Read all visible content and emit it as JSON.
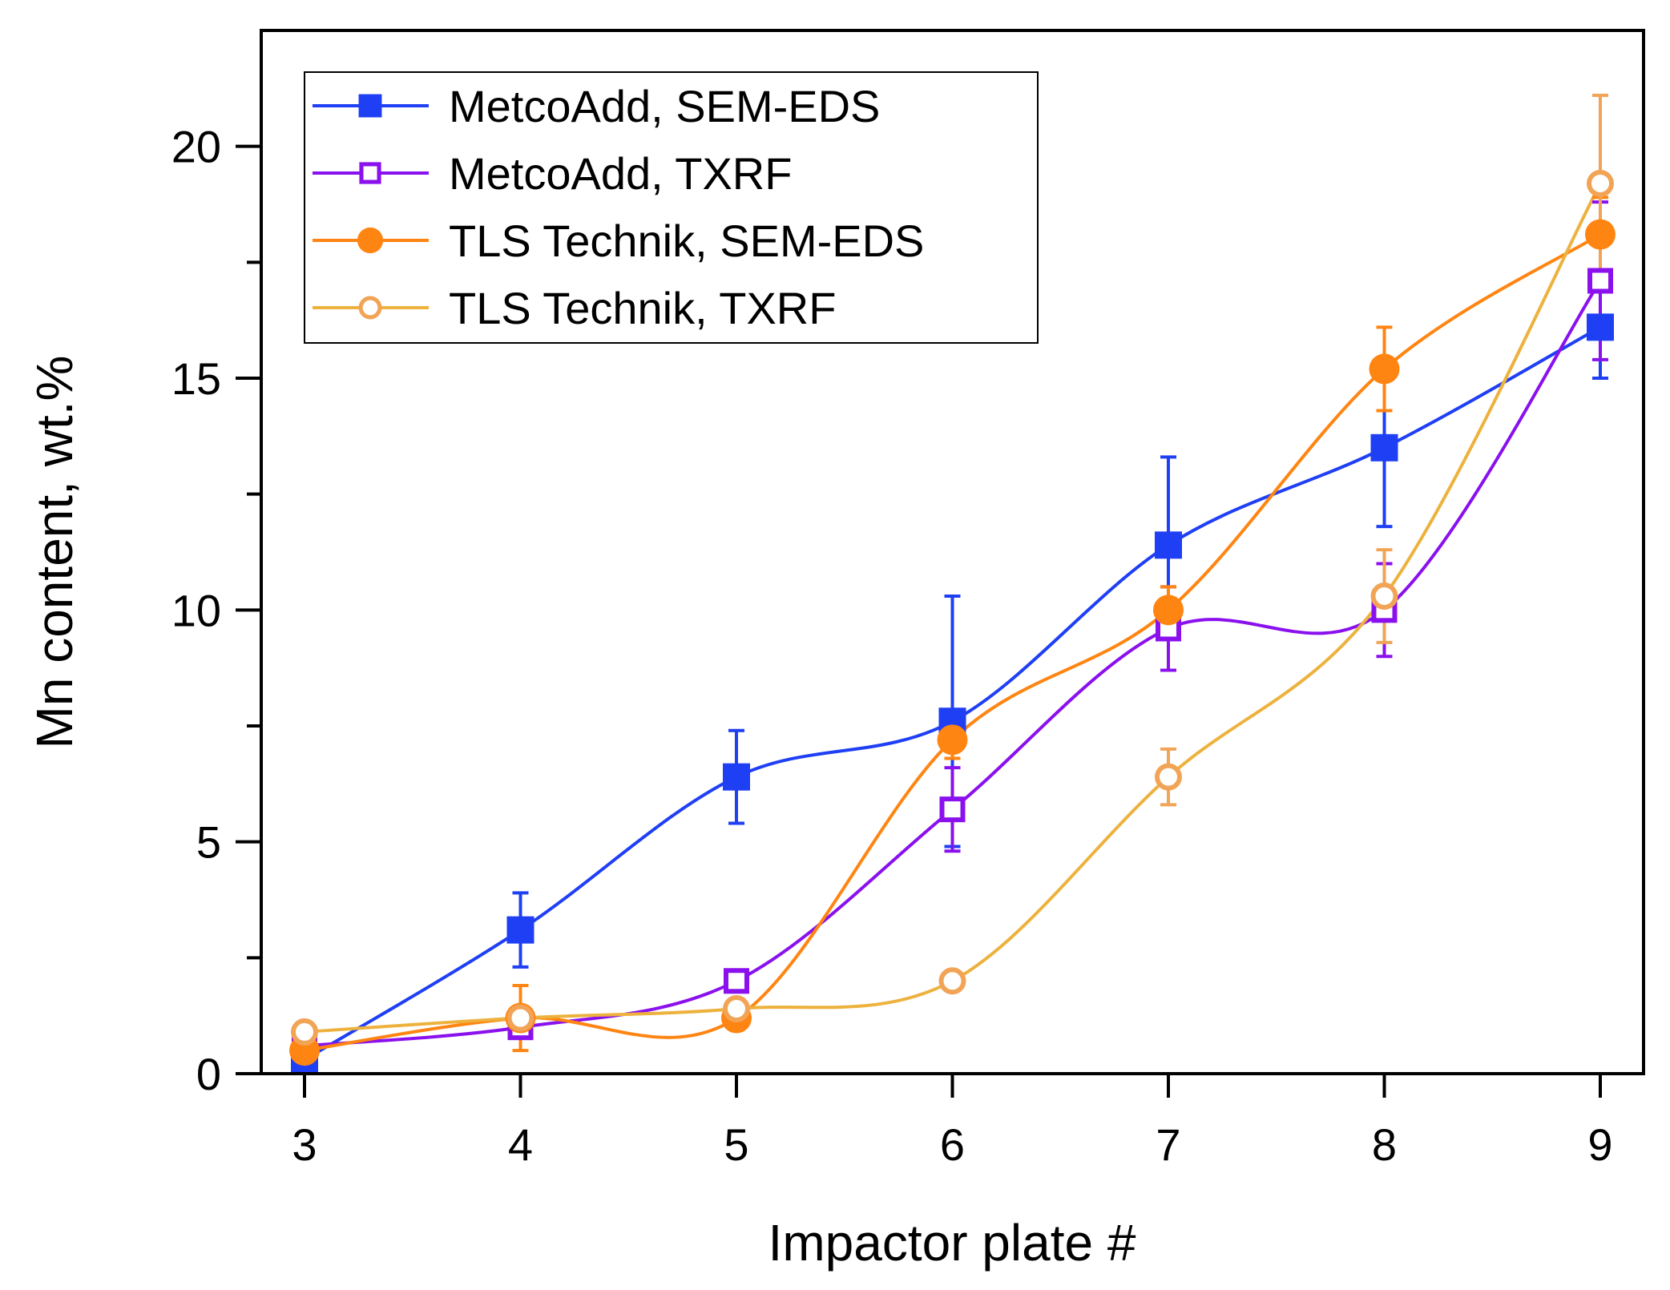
{
  "chart_data": {
    "type": "line",
    "title": "",
    "xlabel": "Impactor plate #",
    "ylabel": "Mn content, wt.%",
    "xlim": [
      2.8,
      9.2
    ],
    "ylim": [
      0,
      22.5
    ],
    "xticks": [
      "3",
      "4",
      "5",
      "6",
      "7",
      "8",
      "9"
    ],
    "yticks": [
      "0",
      "5",
      "10",
      "15",
      "20"
    ],
    "grid": false,
    "legend_position": "top-left",
    "x": [
      3,
      4,
      5,
      6,
      7,
      8,
      9
    ],
    "series": [
      {
        "name": "MetcoAdd, SEM-EDS",
        "color": "#1f3ff5",
        "marker": "square-filled",
        "values": [
          0.3,
          3.1,
          6.4,
          7.6,
          11.4,
          13.5,
          16.1
        ],
        "errors": [
          0.2,
          0.8,
          1.0,
          2.7,
          1.9,
          1.7,
          1.1
        ]
      },
      {
        "name": "MetcoAdd, TXRF",
        "color": "#8a10ee",
        "marker": "square-open",
        "values": [
          0.6,
          1.0,
          2.0,
          5.7,
          9.6,
          10.0,
          17.1
        ],
        "errors": [
          0.1,
          0.1,
          0.2,
          0.9,
          0.9,
          1.0,
          1.7
        ]
      },
      {
        "name": "TLS Technik, SEM-EDS",
        "color": "#ff8512",
        "marker": "circle-filled",
        "values": [
          0.5,
          1.2,
          1.2,
          7.2,
          10.0,
          15.2,
          18.1
        ],
        "errors": [
          0.1,
          0.7,
          0.1,
          0.4,
          0.5,
          0.9,
          0.8
        ]
      },
      {
        "name": "TLS Technik, TXRF",
        "color": "#f2a456",
        "line_color": "#edb23e",
        "marker": "circle-open",
        "values": [
          0.9,
          1.2,
          1.4,
          2.0,
          6.4,
          10.3,
          19.2
        ],
        "errors": [
          0.1,
          0.2,
          0.2,
          0.2,
          0.6,
          1.0,
          1.9
        ]
      }
    ]
  }
}
